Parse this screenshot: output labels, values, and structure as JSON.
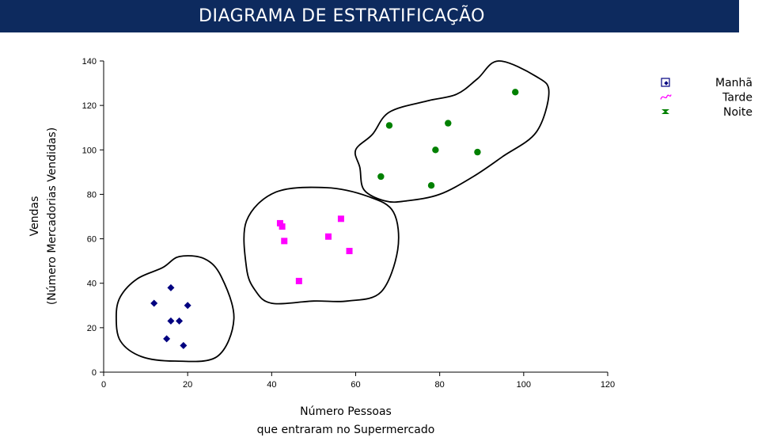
{
  "header": {
    "title": "DIAGRAMA DE ESTRATIFICAÇÃO"
  },
  "chart_data": {
    "type": "scatter",
    "title": "DIAGRAMA DE ESTRATIFICAÇÃO",
    "xlabel": [
      "Número Pessoas",
      "que entraram no Supermercado"
    ],
    "ylabel": [
      "Vendas",
      "(Número Mercadorias Vendidas)"
    ],
    "xlim": [
      0,
      120
    ],
    "ylim": [
      0,
      140
    ],
    "xticks": [
      0,
      20,
      40,
      60,
      80,
      100,
      120
    ],
    "yticks": [
      0,
      20,
      40,
      60,
      80,
      100,
      120,
      140
    ],
    "grid": false,
    "legend_position": "right",
    "series": [
      {
        "name": "Manhã",
        "marker": "diamond",
        "color": "#000080",
        "points": [
          [
            12,
            31
          ],
          [
            16,
            38
          ],
          [
            16,
            23
          ],
          [
            18,
            23
          ],
          [
            20,
            30
          ],
          [
            15,
            15
          ],
          [
            19,
            12
          ]
        ]
      },
      {
        "name": "Tarde",
        "marker": "square",
        "color": "#ff00ff",
        "points": [
          [
            42,
            67
          ],
          [
            42.5,
            65.5
          ],
          [
            43,
            59
          ],
          [
            46.5,
            41
          ],
          [
            53.5,
            61
          ],
          [
            56.5,
            69
          ],
          [
            58.5,
            54.5
          ]
        ]
      },
      {
        "name": "Noite",
        "marker": "circle",
        "color": "#008000",
        "points": [
          [
            66,
            88
          ],
          [
            68,
            111
          ],
          [
            78,
            84
          ],
          [
            79,
            100
          ],
          [
            82,
            112
          ],
          [
            89,
            99
          ],
          [
            98,
            126
          ]
        ]
      }
    ],
    "enclosures": [
      {
        "group": "Manhã",
        "points": [
          [
            4,
            34
          ],
          [
            8,
            42
          ],
          [
            14,
            47
          ],
          [
            18,
            52
          ],
          [
            24,
            51
          ],
          [
            28,
            43
          ],
          [
            31,
            24
          ],
          [
            27,
            7
          ],
          [
            17,
            5
          ],
          [
            9,
            7
          ],
          [
            4,
            14
          ],
          [
            3,
            25
          ]
        ]
      },
      {
        "group": "Tarde",
        "points": [
          [
            34,
            68
          ],
          [
            41,
            81
          ],
          [
            53,
            83
          ],
          [
            63,
            79
          ],
          [
            69,
            72
          ],
          [
            70,
            55
          ],
          [
            66,
            36
          ],
          [
            58,
            32
          ],
          [
            50,
            32
          ],
          [
            40,
            31
          ],
          [
            36,
            37
          ],
          [
            34,
            47
          ]
        ]
      },
      {
        "group": "Noite",
        "points": [
          [
            60,
            100
          ],
          [
            64,
            107
          ],
          [
            68,
            117
          ],
          [
            77,
            122
          ],
          [
            84,
            125
          ],
          [
            89,
            132
          ],
          [
            94,
            140
          ],
          [
            103,
            133
          ],
          [
            106,
            126
          ],
          [
            103,
            108
          ],
          [
            95,
            97
          ],
          [
            88,
            88
          ],
          [
            80,
            80
          ],
          [
            72,
            77
          ],
          [
            67,
            77
          ],
          [
            62,
            82
          ],
          [
            61,
            92
          ]
        ]
      }
    ]
  }
}
